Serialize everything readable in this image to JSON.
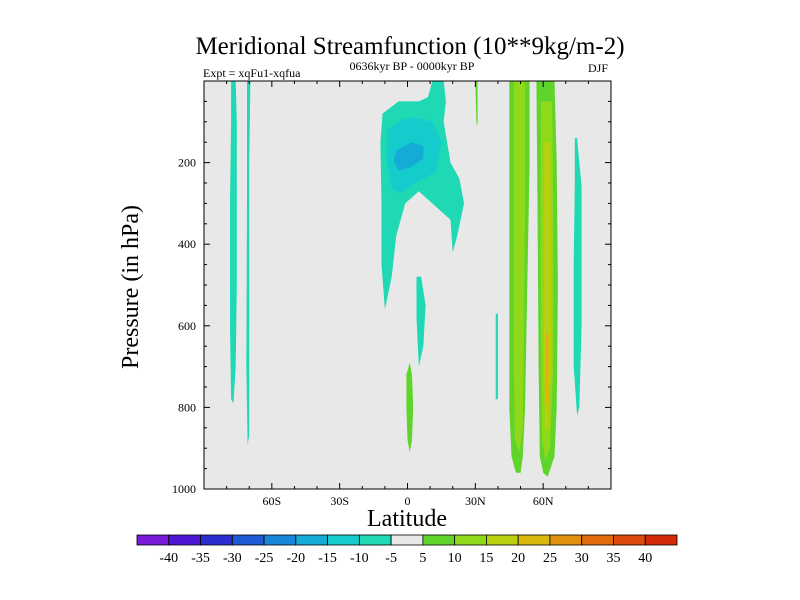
{
  "chart_data": {
    "type": "contour",
    "title": "Meridional Streamfunction (10**9kg/m-2)",
    "subtitle_left": "Expt = xqFu1-xqfua",
    "subtitle_center": "0636kyr BP - 0000kyr BP",
    "subtitle_right": "DJF",
    "xlabel": "Latitude",
    "ylabel": "Pressure (in hPa)",
    "xlim": [
      -90,
      90
    ],
    "ylim": [
      1000,
      0
    ],
    "x_ticks": [
      {
        "value": -60,
        "label": "60S"
      },
      {
        "value": -30,
        "label": "30S"
      },
      {
        "value": 0,
        "label": "0"
      },
      {
        "value": 30,
        "label": "30N"
      },
      {
        "value": 60,
        "label": "60N"
      }
    ],
    "y_ticks": [
      {
        "value": 200,
        "label": "200"
      },
      {
        "value": 400,
        "label": "400"
      },
      {
        "value": 600,
        "label": "600"
      },
      {
        "value": 800,
        "label": "800"
      },
      {
        "value": 1000,
        "label": "1000"
      }
    ],
    "background_color": "#e8e8e8",
    "contour_levels": [
      -40,
      -35,
      -30,
      -25,
      -20,
      -15,
      -10,
      -5,
      5,
      10,
      15,
      20,
      25,
      30,
      35,
      40
    ],
    "colorbar_colors": [
      "#7a1bd8",
      "#4d17d4",
      "#2a2ecf",
      "#1f5ad6",
      "#1a86d9",
      "#14acd6",
      "#14cccc",
      "#1fd9b4",
      "#e8e8e8",
      "#5fd42a",
      "#8fd81a",
      "#b8d00e",
      "#d8b80a",
      "#e0900c",
      "#e06a0c",
      "#dc4a0c",
      "#d42a0a"
    ],
    "regions": [
      {
        "label": "neg-5",
        "level": "-10 to -5",
        "color": "#1fd9b4",
        "points": [
          [
            -78,
            0
          ],
          [
            -76,
            0
          ],
          [
            -75.5,
            100
          ],
          [
            -75.5,
            500
          ],
          [
            -76,
            700
          ],
          [
            -77,
            790
          ],
          [
            -78,
            780
          ],
          [
            -78.5,
            600
          ],
          [
            -78.5,
            300
          ],
          [
            -78,
            100
          ]
        ]
      },
      {
        "label": "neg-5",
        "level": "-10 to -5",
        "color": "#1fd9b4",
        "points": [
          [
            -71,
            0
          ],
          [
            -69.5,
            0
          ],
          [
            -70,
            200
          ],
          [
            -70,
            600
          ],
          [
            -70,
            870
          ],
          [
            -70.7,
            890
          ],
          [
            -71.3,
            700
          ],
          [
            -71,
            300
          ]
        ]
      },
      {
        "label": "neg-5",
        "level": "-10 to -5",
        "color": "#1fd9b4",
        "points": [
          [
            -11,
            80
          ],
          [
            -4,
            50
          ],
          [
            5,
            50
          ],
          [
            9,
            40
          ],
          [
            11,
            0
          ],
          [
            16,
            0
          ],
          [
            17,
            50
          ],
          [
            16,
            100
          ],
          [
            19,
            200
          ],
          [
            23,
            240
          ],
          [
            25,
            300
          ],
          [
            22,
            380
          ],
          [
            20,
            420
          ],
          [
            19,
            340
          ],
          [
            15,
            320
          ],
          [
            5,
            270
          ],
          [
            -1,
            300
          ],
          [
            -5,
            380
          ],
          [
            -7,
            480
          ],
          [
            -10,
            560
          ],
          [
            -11.5,
            450
          ],
          [
            -11.5,
            300
          ],
          [
            -12,
            150
          ]
        ]
      },
      {
        "label": "neg-10",
        "level": "-15 to -10",
        "color": "#14cccc",
        "points": [
          [
            -9,
            120
          ],
          [
            -3,
            95
          ],
          [
            3,
            90
          ],
          [
            11,
            100
          ],
          [
            15,
            150
          ],
          [
            13,
            220
          ],
          [
            7,
            240
          ],
          [
            2,
            255
          ],
          [
            -3,
            275
          ],
          [
            -7,
            265
          ],
          [
            -9,
            200
          ]
        ]
      },
      {
        "label": "neg-15",
        "level": "-20 to -15",
        "color": "#14acd6",
        "points": [
          [
            -5,
            170
          ],
          [
            2,
            150
          ],
          [
            7,
            160
          ],
          [
            7,
            190
          ],
          [
            2,
            210
          ],
          [
            -4,
            220
          ],
          [
            -6,
            195
          ]
        ]
      },
      {
        "label": "neg-5",
        "level": "-10 to -5",
        "color": "#1fd9b4",
        "points": [
          [
            4,
            480
          ],
          [
            6,
            480
          ],
          [
            8,
            550
          ],
          [
            7,
            650
          ],
          [
            5,
            700
          ],
          [
            4,
            580
          ]
        ]
      },
      {
        "label": "neg-5",
        "level": "-10 to -5",
        "color": "#1fd9b4",
        "points": [
          [
            39,
            570
          ],
          [
            40,
            570
          ],
          [
            40,
            780
          ],
          [
            39,
            780
          ]
        ]
      },
      {
        "label": "neg-5",
        "level": "-10 to -5",
        "color": "#1fd9b4",
        "points": [
          [
            74,
            140
          ],
          [
            75,
            140
          ],
          [
            77,
            260
          ],
          [
            77,
            600
          ],
          [
            76,
            800
          ],
          [
            75,
            820
          ],
          [
            73.5,
            700
          ],
          [
            73.5,
            450
          ],
          [
            74,
            250
          ]
        ]
      },
      {
        "label": "pos-5",
        "level": "5 to 10",
        "color": "#5fd42a",
        "points": [
          [
            -0.5,
            720
          ],
          [
            1,
            690
          ],
          [
            2,
            720
          ],
          [
            2.5,
            800
          ],
          [
            2,
            880
          ],
          [
            1,
            910
          ],
          [
            0,
            880
          ],
          [
            -0.5,
            800
          ]
        ]
      },
      {
        "label": "pos-5",
        "level": "5 to 10",
        "color": "#5fd42a",
        "points": [
          [
            30,
            0
          ],
          [
            31,
            0
          ],
          [
            31,
            100
          ],
          [
            30.5,
            110
          ]
        ]
      },
      {
        "label": "pos-5",
        "level": "5 to 10",
        "color": "#5fd42a",
        "points": [
          [
            45,
            0
          ],
          [
            54,
            0
          ],
          [
            54,
            200
          ],
          [
            53,
            500
          ],
          [
            52,
            800
          ],
          [
            51,
            920
          ],
          [
            50,
            960
          ],
          [
            48,
            960
          ],
          [
            46,
            920
          ],
          [
            45,
            800
          ],
          [
            45,
            300
          ]
        ]
      },
      {
        "label": "pos-10",
        "level": "10 to 15",
        "color": "#8fd81a",
        "points": [
          [
            47,
            0
          ],
          [
            52,
            0
          ],
          [
            52,
            300
          ],
          [
            51.5,
            600
          ],
          [
            51,
            850
          ],
          [
            49.5,
            910
          ],
          [
            47.5,
            880
          ],
          [
            47,
            700
          ],
          [
            47,
            300
          ]
        ]
      },
      {
        "label": "pos-5",
        "level": "5 to 10",
        "color": "#5fd42a",
        "points": [
          [
            57,
            0
          ],
          [
            65,
            0
          ],
          [
            66,
            200
          ],
          [
            66.5,
            500
          ],
          [
            66,
            800
          ],
          [
            65,
            920
          ],
          [
            62,
            970
          ],
          [
            60,
            960
          ],
          [
            58.5,
            920
          ],
          [
            58,
            700
          ],
          [
            57.5,
            300
          ]
        ]
      },
      {
        "label": "pos-10",
        "level": "10 to 15",
        "color": "#8fd81a",
        "points": [
          [
            59,
            50
          ],
          [
            64,
            50
          ],
          [
            64.5,
            300
          ],
          [
            64.5,
            700
          ],
          [
            63,
            900
          ],
          [
            61,
            930
          ],
          [
            59.5,
            880
          ],
          [
            59,
            600
          ],
          [
            58.8,
            300
          ]
        ]
      },
      {
        "label": "pos-15",
        "level": "15 to 20",
        "color": "#b8d00e",
        "points": [
          [
            60.5,
            150
          ],
          [
            63,
            150
          ],
          [
            63.5,
            400
          ],
          [
            63.5,
            700
          ],
          [
            62.5,
            850
          ],
          [
            61,
            860
          ],
          [
            60.3,
            700
          ],
          [
            60.3,
            400
          ]
        ]
      },
      {
        "label": "pos-20",
        "level": "20 to 25",
        "color": "#d8b80a",
        "points": [
          [
            61,
            620
          ],
          [
            62.8,
            620
          ],
          [
            62.8,
            780
          ],
          [
            61.8,
            820
          ],
          [
            61,
            760
          ]
        ]
      }
    ]
  }
}
